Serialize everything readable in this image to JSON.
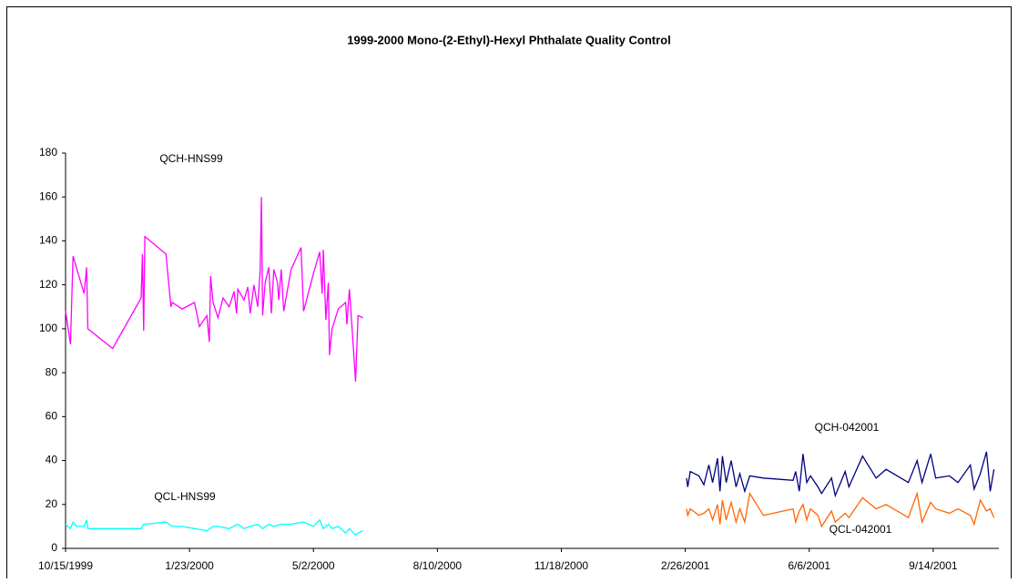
{
  "chart_data": {
    "type": "line",
    "title": "1999-2000 Mono-(2-Ethyl)-Hexyl Phthalate Quality Control",
    "xlim": [
      "10/15/1999",
      "11/6/2001"
    ],
    "xticks": [
      "10/15/1999",
      "1/23/2000",
      "5/2/2000",
      "8/10/2000",
      "11/18/2000",
      "2/26/2001",
      "6/6/2001",
      "9/14/2001"
    ],
    "ylim": [
      0,
      180
    ],
    "yticks": [
      0,
      20,
      40,
      60,
      80,
      100,
      120,
      140,
      160,
      180
    ],
    "series": [
      {
        "name": "QCH-HNS99",
        "color": "#ff00ff",
        "x": [
          "10/15/1999",
          "10/19/1999",
          "10/21/1999",
          "10/30/1999",
          "11/1/1999",
          "11/2/1999",
          "11/22/1999",
          "12/15/1999",
          "12/16/1999",
          "12/17/1999",
          "12/18/1999",
          "1/4/2000",
          "1/8/2000",
          "1/9/2000",
          "1/17/2000",
          "1/27/2000",
          "1/31/2000",
          "2/6/2000",
          "2/8/2000",
          "2/9/2000",
          "2/11/2000",
          "2/15/2000",
          "2/19/2000",
          "2/24/2000",
          "2/28/2000",
          "3/1/2000",
          "3/2/2000",
          "3/7/2000",
          "3/10/2000",
          "3/12/2000",
          "3/15/2000",
          "3/18/2000",
          "3/20/2000",
          "3/21/2000",
          "3/22/2000",
          "3/24/2000",
          "3/27/2000",
          "3/29/2000",
          "3/31/2000",
          "4/3/2000",
          "4/4/2000",
          "4/6/2000",
          "4/8/2000",
          "4/14/2000",
          "4/22/2000",
          "4/24/2000",
          "5/2/2000",
          "5/7/2000",
          "5/9/2000",
          "5/10/2000",
          "5/12/2000",
          "5/14/2000",
          "5/15/2000",
          "5/17/2000",
          "5/22/2000",
          "5/28/2000",
          "5/29/2000",
          "5/31/2000",
          "6/1/2000",
          "6/5/2000",
          "6/7/2000",
          "6/11/2000"
        ],
        "values": [
          108,
          93,
          133,
          116,
          128,
          100,
          91,
          114,
          134,
          99,
          142,
          134,
          110,
          112,
          109,
          112,
          101,
          106,
          94,
          124,
          112,
          105,
          114,
          110,
          117,
          107,
          118,
          113,
          119,
          107,
          120,
          110,
          126,
          160,
          106,
          121,
          128,
          107,
          127,
          121,
          113,
          127,
          108,
          127,
          137,
          108,
          125,
          135,
          116,
          136,
          104,
          121,
          88,
          100,
          109,
          112,
          102,
          118,
          110,
          76,
          106,
          105
        ]
      },
      {
        "name": "QCL-HNS99",
        "color": "#00ffff",
        "x": [
          "10/15/1999",
          "10/19/1999",
          "10/21/1999",
          "10/24/1999",
          "10/30/1999",
          "11/1/1999",
          "11/2/1999",
          "12/15/1999",
          "12/17/1999",
          "12/18/1999",
          "1/4/2000",
          "1/9/2000",
          "1/17/2000",
          "2/6/2000",
          "2/11/2000",
          "2/15/2000",
          "2/24/2000",
          "3/2/2000",
          "3/7/2000",
          "3/12/2000",
          "3/18/2000",
          "3/22/2000",
          "3/27/2000",
          "3/31/2000",
          "4/6/2000",
          "4/14/2000",
          "4/24/2000",
          "5/2/2000",
          "5/7/2000",
          "5/10/2000",
          "5/14/2000",
          "5/17/2000",
          "5/22/2000",
          "5/28/2000",
          "5/31/2000",
          "6/5/2000",
          "6/7/2000",
          "6/11/2000"
        ],
        "values": [
          11,
          9,
          12,
          10,
          10,
          13,
          9,
          9,
          11,
          11,
          12,
          10,
          10,
          8,
          10,
          10,
          9,
          11,
          9,
          10,
          11,
          9,
          11,
          10,
          11,
          11,
          12,
          10,
          13,
          9,
          11,
          9,
          10,
          7,
          9,
          6,
          7,
          8
        ]
      },
      {
        "name": "QCH-042001",
        "color": "#000080",
        "x": [
          "2/27/2001",
          "2/28/2001",
          "3/2/2001",
          "3/9/2001",
          "3/13/2001",
          "3/17/2001",
          "3/20/2001",
          "3/24/2001",
          "3/26/2001",
          "3/28/2001",
          "3/31/2001",
          "4/4/2001",
          "4/8/2001",
          "4/11/2001",
          "4/15/2001",
          "4/19/2001",
          "4/30/2001",
          "5/24/2001",
          "5/26/2001",
          "5/29/2001",
          "6/1/2001",
          "6/4/2001",
          "6/7/2001",
          "6/13/2001",
          "6/16/2001",
          "6/24/2001",
          "6/27/2001",
          "7/5/2001",
          "7/8/2001",
          "7/19/2001",
          "7/30/2001",
          "8/7/2001",
          "8/25/2001",
          "9/1/2001",
          "9/5/2001",
          "9/12/2001",
          "9/16/2001",
          "9/27/2001",
          "10/4/2001",
          "10/14/2001",
          "10/17/2001",
          "10/22/2001",
          "10/27/2001",
          "10/30/2001",
          "11/2/2001"
        ],
        "values": [
          32,
          28,
          35,
          33,
          29,
          38,
          30,
          41,
          26,
          42,
          30,
          40,
          28,
          34,
          26,
          33,
          32,
          31,
          35,
          26,
          43,
          30,
          33,
          28,
          25,
          32,
          24,
          35,
          28,
          42,
          32,
          36,
          30,
          40,
          30,
          43,
          32,
          33,
          30,
          38,
          27,
          34,
          44,
          26,
          36
        ]
      },
      {
        "name": "QCL-042001",
        "color": "#ff6600",
        "x": [
          "2/27/2001",
          "2/28/2001",
          "3/2/2001",
          "3/9/2001",
          "3/13/2001",
          "3/17/2001",
          "3/20/2001",
          "3/24/2001",
          "3/26/2001",
          "3/28/2001",
          "3/31/2001",
          "4/4/2001",
          "4/8/2001",
          "4/11/2001",
          "4/15/2001",
          "4/19/2001",
          "4/30/2001",
          "5/24/2001",
          "5/26/2001",
          "5/29/2001",
          "6/1/2001",
          "6/4/2001",
          "6/7/2001",
          "6/13/2001",
          "6/16/2001",
          "6/24/2001",
          "6/27/2001",
          "7/5/2001",
          "7/8/2001",
          "7/19/2001",
          "7/30/2001",
          "8/7/2001",
          "8/25/2001",
          "9/1/2001",
          "9/5/2001",
          "9/12/2001",
          "9/16/2001",
          "9/27/2001",
          "10/4/2001",
          "10/14/2001",
          "10/17/2001",
          "10/22/2001",
          "10/27/2001",
          "10/30/2001",
          "11/2/2001"
        ],
        "values": [
          18,
          15,
          18,
          15,
          16,
          18,
          13,
          20,
          11,
          22,
          13,
          21,
          12,
          18,
          12,
          25,
          15,
          18,
          12,
          17,
          20,
          13,
          18,
          15,
          10,
          17,
          12,
          16,
          14,
          23,
          18,
          20,
          14,
          25,
          12,
          21,
          18,
          16,
          18,
          15,
          11,
          22,
          17,
          18,
          14
        ]
      }
    ]
  }
}
